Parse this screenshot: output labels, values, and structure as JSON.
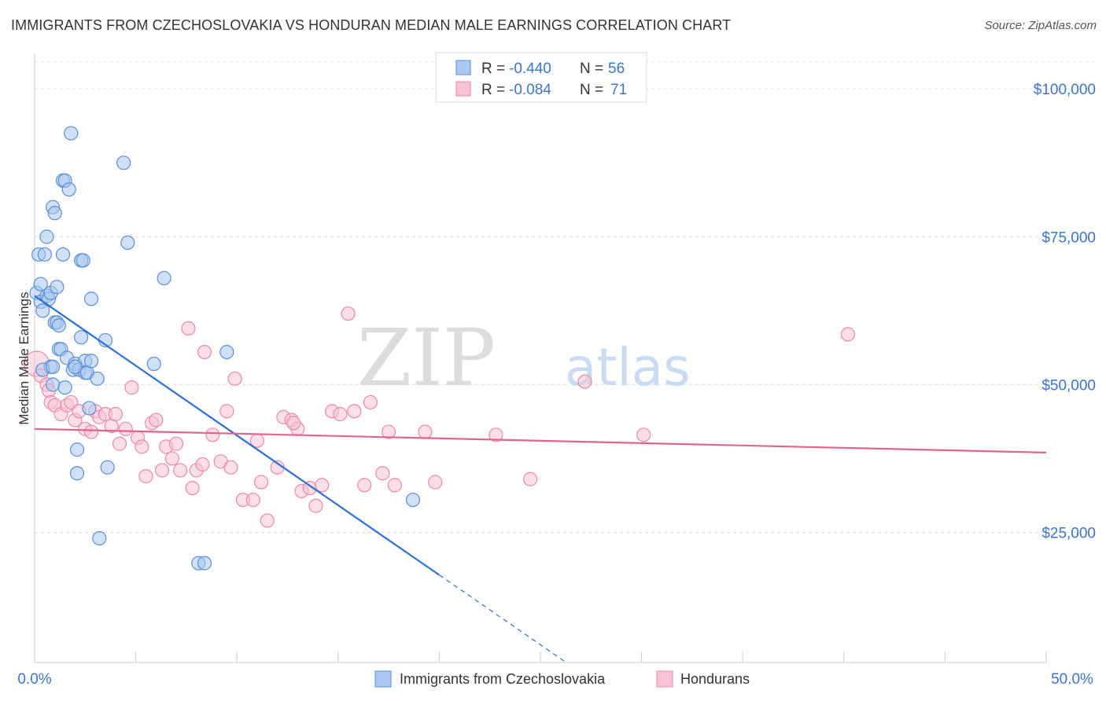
{
  "header": {
    "title": "IMMIGRANTS FROM CZECHOSLOVAKIA VS HONDURAN MEDIAN MALE EARNINGS CORRELATION CHART",
    "source": "Source: ZipAtlas.com"
  },
  "watermark": {
    "zip": "ZIP",
    "atlas": "atlas"
  },
  "legend_box": {
    "rows": [
      {
        "r_label": "R =",
        "r_value": "-0.440",
        "n_label": "N =",
        "n_value": "56"
      },
      {
        "r_label": "R =",
        "r_value": "-0.084",
        "n_label": "N =",
        "n_value": "71"
      }
    ]
  },
  "colors": {
    "blue_fill": "#aac8f0",
    "blue_stroke": "#5b8fd6",
    "blue_line": "#2f6fd0",
    "pink_fill": "#f7c3d4",
    "pink_stroke": "#e88aa9",
    "pink_line": "#e0658d",
    "accent_text": "#3d75cc",
    "grid": "#dddddd"
  },
  "chart_data": {
    "type": "scatter",
    "title": "IMMIGRANTS FROM CZECHOSLOVAKIA VS HONDURAN MEDIAN MALE EARNINGS CORRELATION CHART",
    "xlabel": "",
    "ylabel": "Median Male Earnings",
    "xlim": [
      0,
      50
    ],
    "ylim": [
      3000,
      106000
    ],
    "x_tick_labels": {
      "min": "0.0%",
      "max": "50.0%"
    },
    "y_ticks": [
      {
        "value": 100000,
        "label": "$100,000"
      },
      {
        "value": 75000,
        "label": "$75,000"
      },
      {
        "value": 50000,
        "label": "$50,000"
      },
      {
        "value": 25000,
        "label": "$25,000"
      }
    ],
    "grid": true,
    "legend_position": "bottom",
    "series": [
      {
        "name": "Immigrants from Czechoslovakia",
        "R": -0.44,
        "N": 56,
        "trend": {
          "x0": 0,
          "y0": 65000,
          "x1": 20,
          "y1": 17800,
          "dashed_to_x": 30,
          "dashed_to_y": -5800
        },
        "points": [
          [
            0.1,
            65500
          ],
          [
            0.2,
            72000
          ],
          [
            0.3,
            64000
          ],
          [
            0.3,
            67000
          ],
          [
            0.4,
            62500
          ],
          [
            0.5,
            72000
          ],
          [
            0.6,
            65000
          ],
          [
            0.6,
            75000
          ],
          [
            0.7,
            64500
          ],
          [
            0.8,
            65500
          ],
          [
            0.8,
            53000
          ],
          [
            0.9,
            50000
          ],
          [
            0.9,
            80000
          ],
          [
            1.0,
            60500
          ],
          [
            1.0,
            79000
          ],
          [
            1.1,
            66500
          ],
          [
            1.1,
            60500
          ],
          [
            1.2,
            56000
          ],
          [
            1.3,
            56000
          ],
          [
            1.4,
            72000
          ],
          [
            1.4,
            84500
          ],
          [
            1.5,
            84500
          ],
          [
            1.5,
            49500
          ],
          [
            1.6,
            54500
          ],
          [
            1.7,
            83000
          ],
          [
            1.8,
            92500
          ],
          [
            1.9,
            52500
          ],
          [
            2.0,
            53500
          ],
          [
            2.1,
            39000
          ],
          [
            2.1,
            35000
          ],
          [
            2.2,
            52500
          ],
          [
            2.3,
            71000
          ],
          [
            2.3,
            58000
          ],
          [
            2.4,
            71000
          ],
          [
            2.5,
            54000
          ],
          [
            2.5,
            52000
          ],
          [
            2.6,
            52000
          ],
          [
            2.7,
            46000
          ],
          [
            2.8,
            64500
          ],
          [
            2.8,
            54000
          ],
          [
            3.1,
            51000
          ],
          [
            3.2,
            24000
          ],
          [
            3.5,
            57500
          ],
          [
            3.6,
            36000
          ],
          [
            4.4,
            87500
          ],
          [
            4.6,
            74000
          ],
          [
            5.9,
            53500
          ],
          [
            6.4,
            68000
          ],
          [
            8.1,
            19800
          ],
          [
            8.4,
            19800
          ],
          [
            9.5,
            55500
          ],
          [
            18.7,
            30500
          ],
          [
            0.4,
            52500
          ],
          [
            1.2,
            60000
          ],
          [
            0.9,
            53000
          ],
          [
            2.0,
            53000
          ]
        ]
      },
      {
        "name": "Hondurans",
        "R": -0.084,
        "N": 71,
        "trend": {
          "x0": 0,
          "y0": 42500,
          "x1": 50,
          "y1": 38500
        },
        "points": [
          [
            0.1,
            53500
          ],
          [
            0.3,
            51500
          ],
          [
            0.6,
            50000
          ],
          [
            0.7,
            49000
          ],
          [
            0.8,
            47000
          ],
          [
            1.0,
            46500
          ],
          [
            1.3,
            45000
          ],
          [
            1.6,
            46500
          ],
          [
            1.8,
            47000
          ],
          [
            2.0,
            44000
          ],
          [
            2.2,
            45500
          ],
          [
            2.5,
            42500
          ],
          [
            2.8,
            42000
          ],
          [
            3.0,
            45500
          ],
          [
            3.2,
            44500
          ],
          [
            3.5,
            45000
          ],
          [
            3.8,
            43000
          ],
          [
            4.0,
            45000
          ],
          [
            4.2,
            40000
          ],
          [
            4.5,
            42500
          ],
          [
            4.8,
            49500
          ],
          [
            5.1,
            41000
          ],
          [
            5.3,
            39500
          ],
          [
            5.5,
            34500
          ],
          [
            5.8,
            43500
          ],
          [
            6.0,
            44000
          ],
          [
            6.3,
            35500
          ],
          [
            6.5,
            39500
          ],
          [
            6.8,
            37500
          ],
          [
            7.0,
            40000
          ],
          [
            7.2,
            35500
          ],
          [
            7.6,
            59500
          ],
          [
            7.8,
            32500
          ],
          [
            8.0,
            35500
          ],
          [
            8.3,
            36500
          ],
          [
            8.4,
            55500
          ],
          [
            8.8,
            41500
          ],
          [
            9.2,
            37000
          ],
          [
            9.5,
            45500
          ],
          [
            9.7,
            36000
          ],
          [
            9.9,
            51000
          ],
          [
            10.3,
            30500
          ],
          [
            10.8,
            30500
          ],
          [
            11.0,
            40500
          ],
          [
            11.2,
            33500
          ],
          [
            11.5,
            27000
          ],
          [
            12.0,
            36000
          ],
          [
            12.3,
            44500
          ],
          [
            12.7,
            44000
          ],
          [
            13.0,
            42500
          ],
          [
            13.2,
            32000
          ],
          [
            13.6,
            32500
          ],
          [
            13.9,
            29500
          ],
          [
            14.2,
            33000
          ],
          [
            14.7,
            45500
          ],
          [
            15.1,
            45000
          ],
          [
            15.5,
            62000
          ],
          [
            15.8,
            45500
          ],
          [
            16.3,
            33000
          ],
          [
            16.6,
            47000
          ],
          [
            17.2,
            35000
          ],
          [
            17.5,
            42000
          ],
          [
            17.8,
            33000
          ],
          [
            19.3,
            42000
          ],
          [
            19.8,
            33500
          ],
          [
            22.8,
            41500
          ],
          [
            24.5,
            34000
          ],
          [
            27.2,
            50500
          ],
          [
            30.1,
            41500
          ],
          [
            40.2,
            58500
          ],
          [
            12.8,
            43500
          ]
        ]
      }
    ]
  }
}
